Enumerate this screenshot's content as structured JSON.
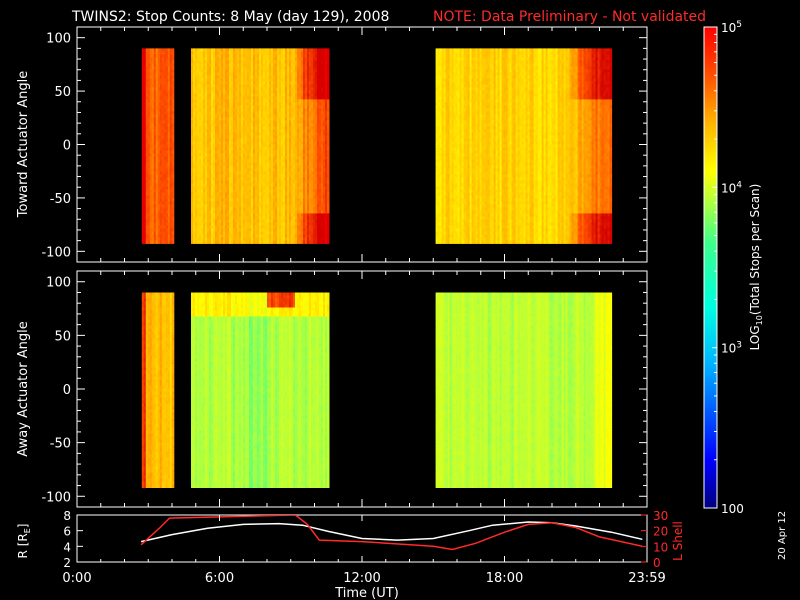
{
  "title": {
    "main": "TWINS2: Stop Counts:  8 May (day 129), 2008",
    "note": "NOTE: Data Preliminary - Not validated"
  },
  "date_stamp": "20 Apr 12",
  "colors": {
    "background": "#000000",
    "axes": "#ffffff",
    "note": "#ff2a2a",
    "orbit_r_line": "#ffffff",
    "orbit_lshell_line": "#ff2a2a"
  },
  "colorbar": {
    "label": "LOG10(Total Stops per Scan)",
    "label_base": "LOG",
    "label_sub": "10",
    "label_rest": "(Total Stops per Scan)",
    "scale": "log",
    "range": [
      100,
      100000
    ],
    "ticks": [
      {
        "value": 100,
        "label": "100"
      },
      {
        "value": 1000,
        "label": "10",
        "exp": "3"
      },
      {
        "value": 10000,
        "label": "10",
        "exp": "4"
      },
      {
        "value": 100000,
        "label": "10",
        "exp": "5"
      }
    ],
    "colormap": [
      "#00007f",
      "#0000ff",
      "#00b4ff",
      "#00ffe0",
      "#3cff8c",
      "#b4ff3c",
      "#ffff00",
      "#ffb400",
      "#ff5000",
      "#d20000",
      "#ff0000"
    ]
  },
  "chart_data": [
    {
      "type": "heatmap",
      "name": "toward",
      "ylabel": "Toward Actuator Angle",
      "xlabel": "",
      "xlim": [
        0,
        24
      ],
      "ylim": [
        -110,
        110
      ],
      "yticks": [
        -100,
        -50,
        0,
        50,
        100
      ],
      "x_ticks": [
        0,
        6,
        12,
        18,
        24
      ],
      "data_y_range": [
        -90,
        90
      ],
      "data_blocks": [
        {
          "start_h": 2.73,
          "end_h": 4.0,
          "typical_counts": 15000
        },
        {
          "start_h": 4.8,
          "end_h": 10.6,
          "typical_counts": 11000
        },
        {
          "start_h": 15.1,
          "end_h": 22.5,
          "typical_counts": 9000
        }
      ]
    },
    {
      "type": "heatmap",
      "name": "away",
      "ylabel": "Away Actuator Angle",
      "xlabel": "",
      "xlim": [
        0,
        24
      ],
      "ylim": [
        -110,
        110
      ],
      "yticks": [
        -100,
        -50,
        0,
        50,
        100
      ],
      "x_ticks": [
        0,
        6,
        12,
        18,
        24
      ],
      "data_y_range": [
        -90,
        90
      ],
      "data_blocks": [
        {
          "start_h": 2.73,
          "end_h": 4.0,
          "typical_counts": 11000
        },
        {
          "start_h": 4.8,
          "end_h": 10.6,
          "typical_counts": 3200
        },
        {
          "start_h": 15.1,
          "end_h": 22.5,
          "typical_counts": 3300
        }
      ]
    },
    {
      "type": "line",
      "name": "orbit",
      "xlabel": "Time (UT)",
      "ylabel": "R [RE]",
      "ylabel_base": "R [R",
      "ylabel_sub": "E",
      "ylabel_end": "]",
      "y2label": "L Shell",
      "xlim": [
        0,
        24
      ],
      "ylim": [
        2,
        8
      ],
      "y2lim": [
        0,
        30
      ],
      "yticks": [
        2,
        4,
        6,
        8
      ],
      "y2ticks": [
        0,
        10,
        20,
        30
      ],
      "x_tick_labels": [
        "0:00",
        "6:00",
        "12:00",
        "18:00",
        "23:59"
      ],
      "series": [
        {
          "axis": "R",
          "x": [
            2.7,
            4.0,
            5.5,
            7.0,
            8.5,
            9.5,
            10.6,
            12.0,
            13.5,
            15.0,
            16.5,
            17.5,
            19.0,
            20.0,
            21.0,
            22.5,
            23.8
          ],
          "y": [
            4.6,
            5.5,
            6.3,
            6.8,
            6.9,
            6.7,
            5.9,
            5.0,
            4.8,
            5.0,
            6.0,
            6.7,
            7.1,
            7.0,
            6.6,
            5.8,
            4.9
          ]
        },
        {
          "axis": "L",
          "x": [
            2.7,
            3.5,
            3.9,
            9.2,
            9.7,
            10.2,
            12.0,
            15.0,
            15.8,
            16.8,
            18.0,
            19.0,
            20.0,
            21.0,
            22.0,
            23.8
          ],
          "y": [
            11,
            22,
            28,
            30,
            24,
            14,
            13,
            10,
            8,
            12,
            19,
            24,
            25,
            22,
            16,
            10
          ]
        }
      ]
    }
  ]
}
